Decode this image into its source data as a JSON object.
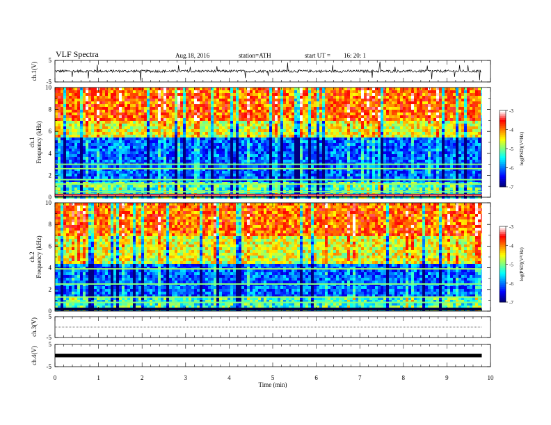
{
  "header": {
    "title": "VLF Spectra",
    "date": "Aug.18, 2016",
    "station": "station=ATH",
    "start": "start UT =",
    "start_time": "16: 20: 1"
  },
  "chart_data": [
    {
      "type": "line",
      "panel": "ch1-waveform",
      "ylabel": "ch.1(V)",
      "ylim": [
        -5,
        5
      ],
      "yticks": [
        "5",
        "-5"
      ],
      "xlim": [
        0,
        10
      ],
      "series_end_min": 9.8
    },
    {
      "type": "heatmap",
      "panel": "ch1-spectrogram",
      "ylabel": "ch.1 Frequency (kHz)",
      "ylim": [
        0,
        10
      ],
      "yticks": [
        "0",
        "2",
        "4",
        "6",
        "8",
        "10"
      ],
      "xlim": [
        0,
        10
      ],
      "colorbar": {
        "label": "log(PSD)(V²/Hz)",
        "range": [
          -7,
          -3
        ],
        "ticks": [
          "-3",
          "-4",
          "-5",
          "-6",
          "-7"
        ]
      },
      "noise_band_kHz": [
        1.5,
        5.5
      ],
      "bright_lines_kHz": [
        0.5,
        1.2,
        1.6,
        2.6,
        3.0
      ]
    },
    {
      "type": "heatmap",
      "panel": "ch2-spectrogram",
      "ylabel": "ch.2 Frequency (kHz)",
      "ylim": [
        0,
        10
      ],
      "yticks": [
        "0",
        "2",
        "4",
        "6",
        "8",
        "10"
      ],
      "xlim": [
        0,
        10
      ],
      "colorbar": {
        "label": "log(PSD)(V²/Hz)",
        "range": [
          -7,
          -3
        ],
        "ticks": [
          "-3",
          "-4",
          "-5",
          "-6",
          "-7"
        ]
      },
      "noise_band_kHz": [
        1.5,
        4.5
      ],
      "bright_lines_kHz": [
        0.8,
        1.3,
        2.5,
        3.9
      ]
    },
    {
      "type": "line",
      "panel": "ch3-waveform",
      "ylabel": "ch.3(V)",
      "ylim": [
        -5,
        5
      ],
      "yticks": [
        "5",
        "-5"
      ],
      "xlim": [
        0,
        10
      ],
      "level_V": 0
    },
    {
      "type": "line",
      "panel": "ch4-waveform",
      "ylabel": "ch.4(V)",
      "ylim": [
        -5,
        5
      ],
      "yticks": [
        "5",
        "-5"
      ],
      "xlim": [
        0,
        10
      ],
      "level_V": 0
    }
  ],
  "xaxis": {
    "label": "Time (min)",
    "ticks": [
      "0",
      "1",
      "2",
      "3",
      "4",
      "5",
      "6",
      "7",
      "8",
      "9",
      "10"
    ]
  },
  "palette": {
    "jet": [
      "#000080",
      "#0000ff",
      "#0080ff",
      "#00ffff",
      "#80ff80",
      "#ffff00",
      "#ff8000",
      "#ff0000",
      "#ffffff"
    ]
  }
}
